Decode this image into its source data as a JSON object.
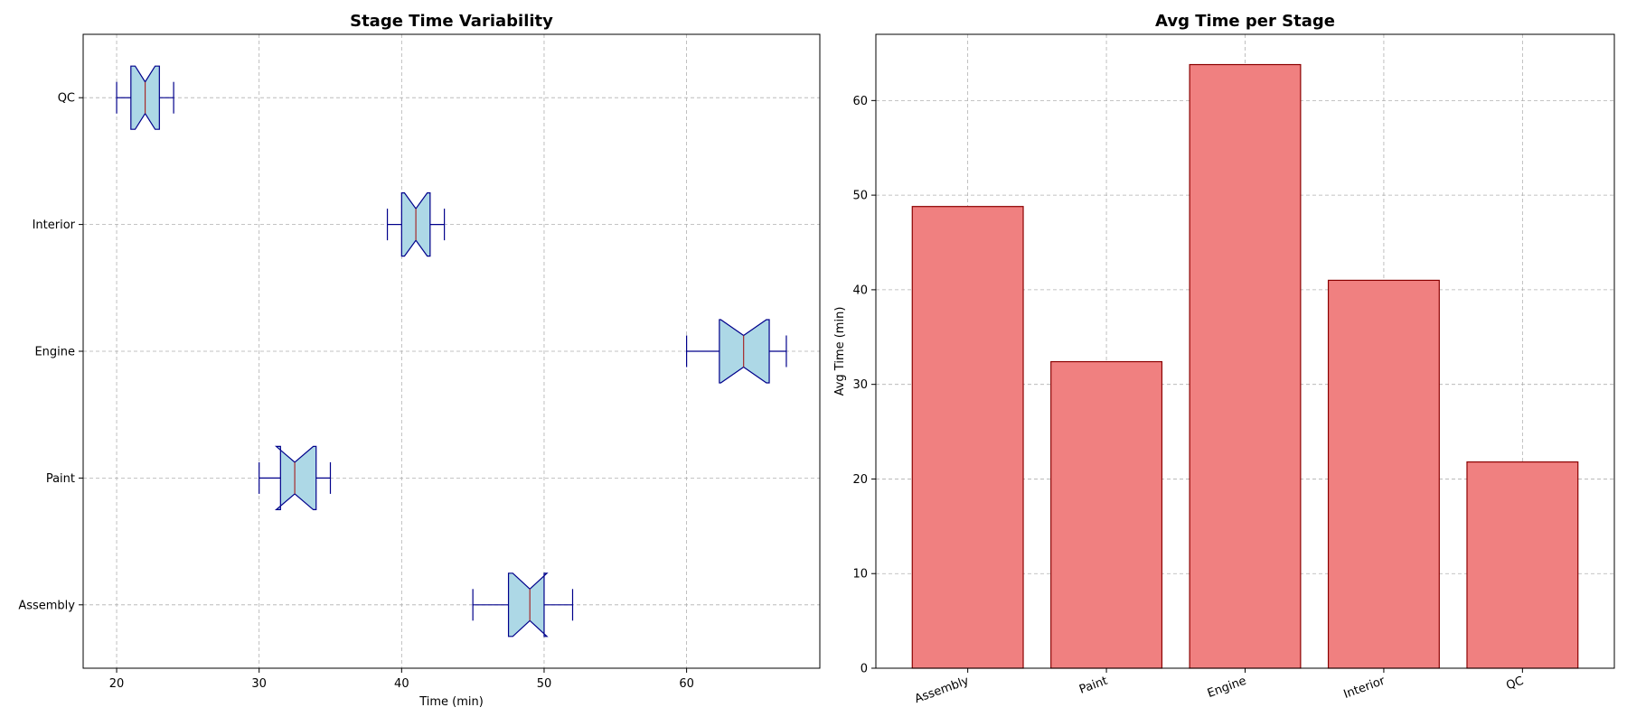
{
  "chart_data": [
    {
      "type": "boxplot",
      "orientation": "horizontal",
      "notched": true,
      "title": "Stage Time Variability",
      "xlabel": "Time (min)",
      "ylabel": "",
      "xlim": [
        17.65,
        69.35
      ],
      "xticks": [
        20,
        30,
        40,
        50,
        60
      ],
      "grid": true,
      "categories": [
        "Assembly",
        "Paint",
        "Engine",
        "Interior",
        "QC"
      ],
      "boxes": [
        {
          "label": "Assembly",
          "whislo": 45.0,
          "q1": 47.5,
          "med": 49.0,
          "q3": 50.0,
          "whishi": 52.0,
          "notch_lo": 47.8,
          "notch_hi": 50.2
        },
        {
          "label": "Paint",
          "whislo": 30.0,
          "q1": 31.5,
          "med": 32.5,
          "q3": 34.0,
          "whishi": 35.0,
          "notch_lo": 31.2,
          "notch_hi": 33.8
        },
        {
          "label": "Engine",
          "whislo": 60.0,
          "q1": 62.3,
          "med": 64.0,
          "q3": 65.8,
          "whishi": 67.0,
          "notch_lo": 62.4,
          "notch_hi": 65.6
        },
        {
          "label": "Interior",
          "whislo": 39.0,
          "q1": 40.0,
          "med": 41.0,
          "q3": 42.0,
          "whishi": 43.0,
          "notch_lo": 40.2,
          "notch_hi": 41.8
        },
        {
          "label": "QC",
          "whislo": 20.0,
          "q1": 21.0,
          "med": 22.0,
          "q3": 23.0,
          "whishi": 24.0,
          "notch_lo": 21.3,
          "notch_hi": 22.7
        }
      ],
      "colors": {
        "box_fill": "#add8e6",
        "box_edge": "#00008b",
        "median": "#a52a2a",
        "whisker": "#00008b"
      }
    },
    {
      "type": "bar",
      "title": "Avg Time per Stage",
      "xlabel": "",
      "ylabel": "Avg Time (min)",
      "categories": [
        "Assembly",
        "Paint",
        "Engine",
        "Interior",
        "QC"
      ],
      "values": [
        48.8,
        32.4,
        63.8,
        41.0,
        21.8
      ],
      "ylim": [
        0,
        67
      ],
      "yticks": [
        0,
        10,
        20,
        30,
        40,
        50,
        60
      ],
      "grid": true,
      "colors": {
        "bar_fill": "#f08080",
        "bar_edge": "#8b0000"
      }
    }
  ]
}
